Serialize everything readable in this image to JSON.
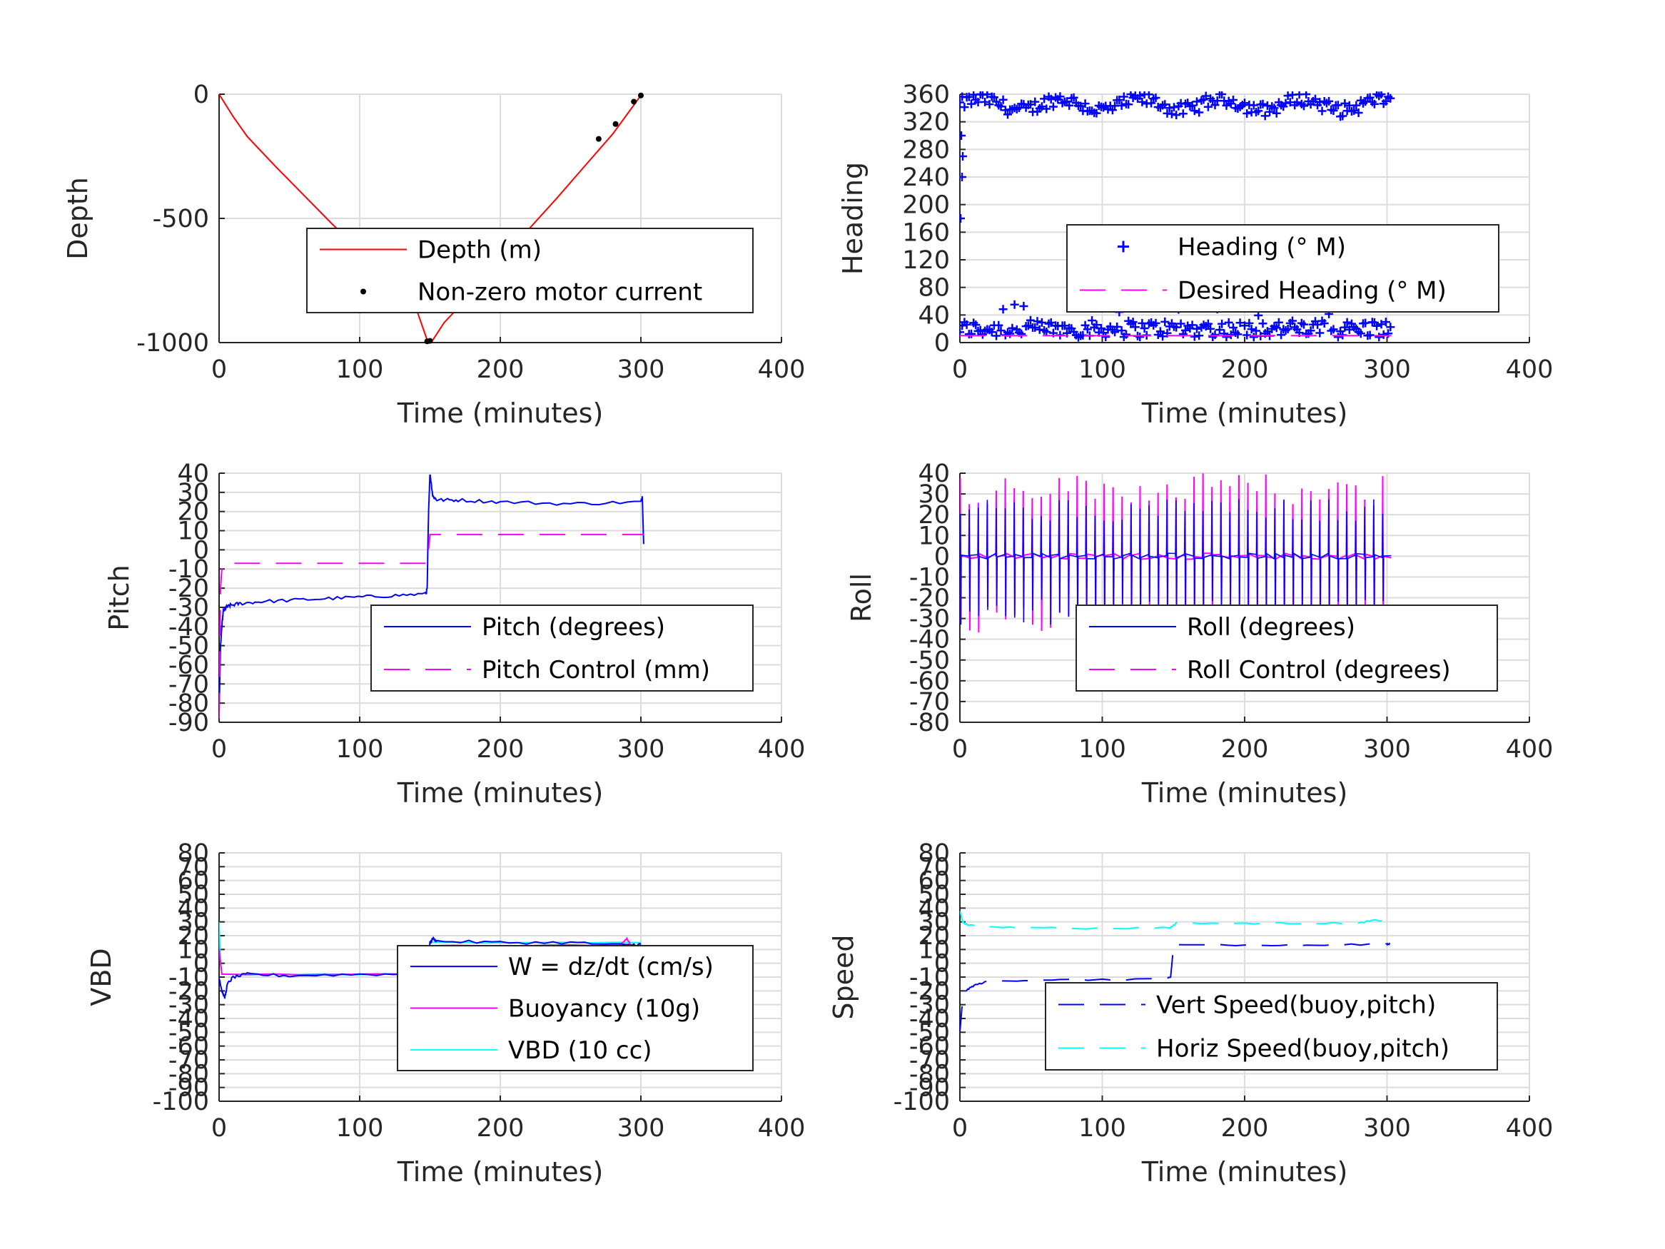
{
  "chart_data": [
    {
      "id": "depth",
      "type": "line",
      "xlabel": "Time (minutes)",
      "ylabel": "Depth",
      "xlim": [
        0,
        400
      ],
      "ylim": [
        -1000,
        0
      ],
      "xticks": [
        0,
        100,
        200,
        300,
        400
      ],
      "yticks": [
        -1000,
        -500,
        0
      ],
      "ytick_labels": [
        "-1000",
        "-500",
        "0"
      ],
      "legend": {
        "position": "lower-right",
        "entries": [
          "Depth (m)",
          "Non-zero motor current"
        ]
      },
      "series": [
        {
          "name": "Depth (m)",
          "style": "line",
          "color": "#ff0000",
          "x": [
            0,
            10,
            20,
            40,
            60,
            80,
            100,
            120,
            140,
            148,
            150,
            152,
            160,
            180,
            200,
            220,
            240,
            260,
            280,
            300
          ],
          "y": [
            0,
            -90,
            -170,
            -290,
            -405,
            -520,
            -630,
            -745,
            -860,
            -990,
            -998,
            -990,
            -920,
            -800,
            -670,
            -545,
            -420,
            -290,
            -160,
            -5
          ]
        },
        {
          "name": "Non-zero motor current",
          "style": "dots",
          "color": "#000000",
          "x": [
            148,
            150,
            270,
            282,
            295,
            300
          ],
          "y": [
            -995,
            -993,
            -180,
            -120,
            -30,
            -5
          ]
        }
      ]
    },
    {
      "id": "heading",
      "type": "scatter",
      "xlabel": "Time (minutes)",
      "ylabel": "Heading",
      "xlim": [
        0,
        400
      ],
      "ylim": [
        0,
        360
      ],
      "xticks": [
        0,
        100,
        200,
        300,
        400
      ],
      "yticks": [
        0,
        40,
        80,
        120,
        160,
        200,
        240,
        280,
        320,
        360
      ],
      "legend": {
        "position": "lower-right",
        "entries": [
          "Heading (° M)",
          "Desired Heading (° M)"
        ]
      },
      "series": [
        {
          "name": "Heading (° M)",
          "style": "plus",
          "color": "#0000ff",
          "upper_band_center": 345,
          "upper_band_spread": 20,
          "lower_band_center": 20,
          "lower_band_spread": 25,
          "x_range": [
            0,
            303
          ]
        },
        {
          "name": "Desired Heading (° M)",
          "style": "dash",
          "color": "#ff00ff",
          "x": [
            0,
            303
          ],
          "y": [
            10,
            10
          ]
        }
      ]
    },
    {
      "id": "pitch",
      "type": "line",
      "xlabel": "Time (minutes)",
      "ylabel": "Pitch",
      "xlim": [
        0,
        400
      ],
      "ylim": [
        -90,
        40
      ],
      "xticks": [
        0,
        100,
        200,
        300,
        400
      ],
      "yticks": [
        -90,
        -80,
        -70,
        -60,
        -50,
        -40,
        -30,
        -20,
        -10,
        0,
        10,
        20,
        30,
        40
      ],
      "legend": {
        "position": "lower-right",
        "entries": [
          "Pitch (degrees)",
          "Pitch Control (mm)"
        ]
      },
      "series": [
        {
          "name": "Pitch (degrees)",
          "style": "line",
          "color": "#0000ff",
          "x": [
            0,
            1,
            2,
            3,
            5,
            8,
            15,
            30,
            60,
            90,
            120,
            147,
            148,
            149,
            150,
            152,
            155,
            170,
            200,
            250,
            300,
            301,
            302
          ],
          "y": [
            -85,
            -50,
            -40,
            -32,
            -30,
            -29,
            -28,
            -27,
            -26,
            -25,
            -24,
            -23,
            -20,
            20,
            40,
            28,
            26,
            26,
            25,
            24,
            25,
            28,
            3
          ]
        },
        {
          "name": "Pitch Control (mm)",
          "style": "dash",
          "color": "#ff00ff",
          "x": [
            0,
            1,
            2,
            4,
            148,
            149,
            150,
            302
          ],
          "y": [
            -88,
            -20,
            -10,
            -7,
            -7,
            0,
            8,
            8
          ]
        }
      ]
    },
    {
      "id": "roll",
      "type": "line",
      "xlabel": "Time (minutes)",
      "ylabel": "Roll",
      "xlim": [
        0,
        400
      ],
      "ylim": [
        -80,
        40
      ],
      "xticks": [
        0,
        100,
        200,
        300,
        400
      ],
      "yticks": [
        -80,
        -70,
        -60,
        -50,
        -40,
        -30,
        -20,
        -10,
        0,
        10,
        20,
        30,
        40
      ],
      "legend": {
        "position": "lower-right",
        "entries": [
          "Roll (degrees)",
          "Roll Control (degrees)"
        ]
      },
      "series": [
        {
          "name": "Roll (degrees)",
          "style": "line",
          "color": "#0000ff",
          "baseline": 0,
          "amplitude_range": [
            -35,
            28
          ],
          "x_range": [
            0,
            303
          ],
          "cycles": 48
        },
        {
          "name": "Roll Control (degrees)",
          "style": "dash",
          "color": "#ff00ff",
          "baseline": 0,
          "amplitude_range": [
            -40,
            40
          ],
          "x_range": [
            0,
            303
          ],
          "cycles": 48
        }
      ]
    },
    {
      "id": "vbd",
      "type": "line",
      "xlabel": "Time (minutes)",
      "ylabel": "VBD",
      "xlim": [
        0,
        400
      ],
      "ylim": [
        -100,
        80
      ],
      "xticks": [
        0,
        100,
        200,
        300,
        400
      ],
      "yticks": [
        -100,
        -90,
        -80,
        -70,
        -60,
        -50,
        -40,
        -30,
        -20,
        -10,
        0,
        10,
        20,
        30,
        40,
        50,
        60,
        70,
        80
      ],
      "legend": {
        "position": "lower-right",
        "entries": [
          "W = dz/dt (cm/s)",
          "Buoyancy (10g)",
          "VBD (10 cc)"
        ]
      },
      "series": [
        {
          "name": "W = dz/dt (cm/s)",
          "style": "line",
          "color": "#0000ff",
          "x": [
            0,
            2,
            4,
            6,
            10,
            20,
            50,
            100,
            148,
            150,
            152,
            155,
            200,
            250,
            290,
            300
          ],
          "y": [
            -10,
            -20,
            -25,
            -15,
            -10,
            -8,
            -9,
            -8,
            -8,
            15,
            18,
            16,
            15,
            15,
            13,
            14
          ]
        },
        {
          "name": "Buoyancy (10g)",
          "style": "line",
          "color": "#ff00ff",
          "x": [
            0,
            2,
            148,
            150,
            285,
            290,
            295,
            300
          ],
          "y": [
            10,
            -8,
            -8,
            13,
            13,
            18,
            10,
            14
          ]
        },
        {
          "name": "VBD (10 cc)",
          "style": "line",
          "color": "#00ffff",
          "x": [
            0,
            1,
            2,
            148,
            150,
            300
          ],
          "y": [
            30,
            0,
            -8,
            -8,
            15,
            15
          ]
        }
      ]
    },
    {
      "id": "speed",
      "type": "line",
      "xlabel": "Time (minutes)",
      "ylabel": "Speed",
      "xlim": [
        0,
        400
      ],
      "ylim": [
        -100,
        80
      ],
      "xticks": [
        0,
        100,
        200,
        300,
        400
      ],
      "yticks": [
        -100,
        -90,
        -80,
        -70,
        -60,
        -50,
        -40,
        -30,
        -20,
        -10,
        0,
        10,
        20,
        30,
        40,
        50,
        60,
        70,
        80
      ],
      "legend": {
        "position": "lower-right",
        "entries": [
          "Vert Speed(buoy,pitch)",
          "Horiz Speed(buoy,pitch)"
        ]
      },
      "series": [
        {
          "name": "Vert Speed(buoy,pitch)",
          "style": "dash",
          "color": "#0000ff",
          "x": [
            0,
            2,
            4,
            10,
            20,
            60,
            100,
            146,
            148,
            150,
            152,
            200,
            250,
            300,
            302
          ],
          "y": [
            -50,
            -25,
            -20,
            -16,
            -13,
            -12,
            -12,
            -11,
            -10,
            12,
            14,
            13,
            13,
            14,
            14
          ]
        },
        {
          "name": "Horiz Speed(buoy,pitch)",
          "style": "dash",
          "color": "#00ffff",
          "x": [
            0,
            2,
            5,
            20,
            60,
            100,
            148,
            152,
            200,
            250,
            280,
            290,
            302
          ],
          "y": [
            38,
            30,
            28,
            26,
            26,
            25,
            26,
            29,
            29,
            29,
            29,
            31,
            31
          ]
        }
      ]
    }
  ]
}
